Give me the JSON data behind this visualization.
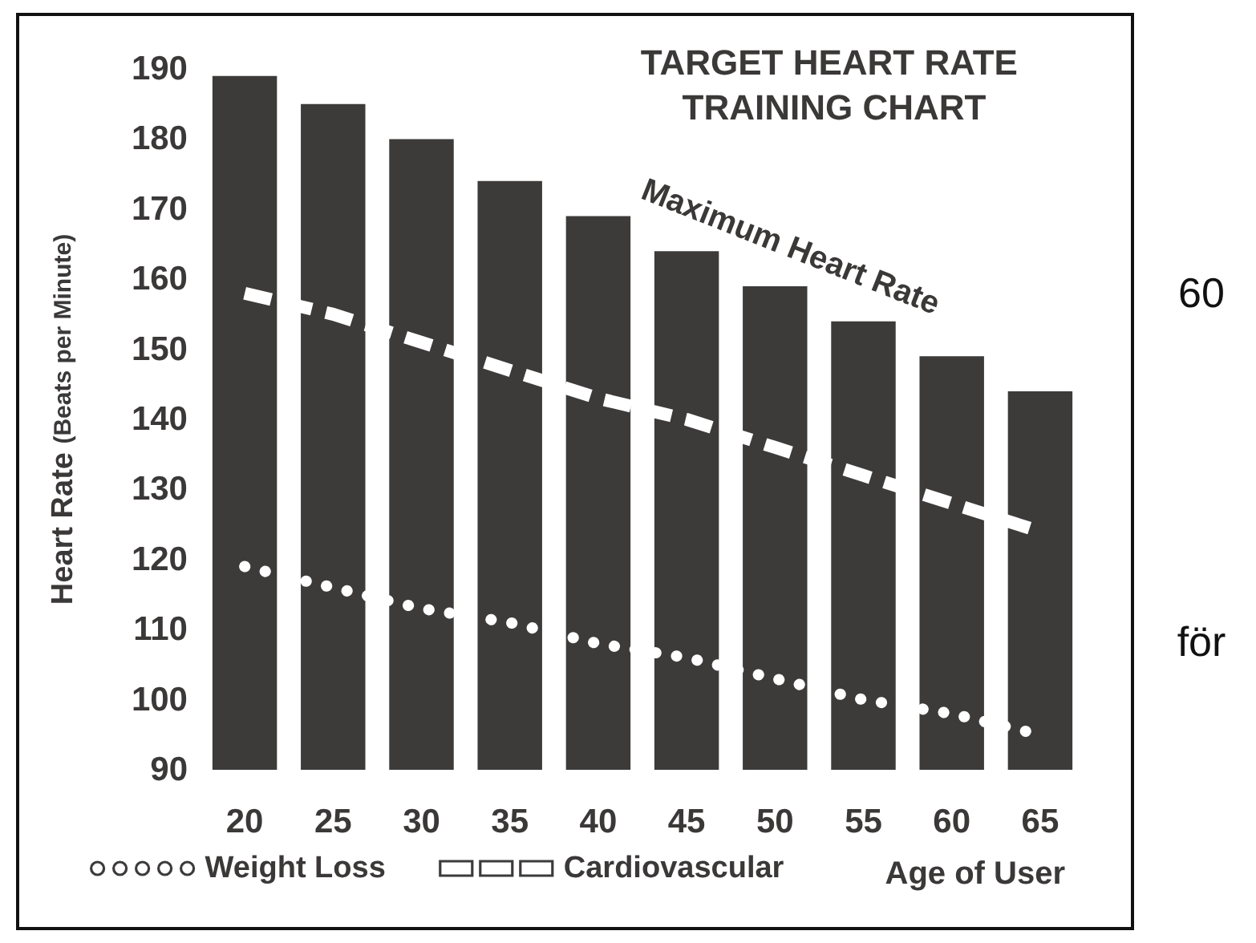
{
  "chart_data": {
    "type": "bar",
    "title": "TARGET HEART RATE TRAINING CHART",
    "xlabel": "Age of User",
    "ylabel": "Heart Rate (Beats per Minute)",
    "categories": [
      "20",
      "25",
      "30",
      "35",
      "40",
      "45",
      "50",
      "55",
      "60",
      "65"
    ],
    "series": [
      {
        "name": "Maximum Heart Rate",
        "type": "bar",
        "color": "#3d3a3a",
        "values": [
          189,
          185,
          180,
          174,
          169,
          164,
          159,
          154,
          149,
          144
        ]
      },
      {
        "name": "Weight Loss",
        "type": "line",
        "color": "#ffffff",
        "line_style": "dotted",
        "marker": "none",
        "values": [
          119,
          116,
          113,
          111,
          108,
          106,
          103,
          100,
          98,
          95
        ]
      },
      {
        "name": "Cardiovascular",
        "type": "line",
        "color": "#ffffff",
        "line_style": "dashed",
        "marker": "none",
        "values": [
          158,
          155,
          151,
          147,
          143,
          140,
          136,
          132,
          128,
          124
        ]
      }
    ],
    "ylim": [
      90,
      190
    ],
    "yticks": [
      90,
      100,
      110,
      120,
      130,
      140,
      150,
      160,
      170,
      180,
      190
    ],
    "grid": false,
    "legend": "bottom left",
    "annotations": [
      "60",
      "för"
    ]
  }
}
